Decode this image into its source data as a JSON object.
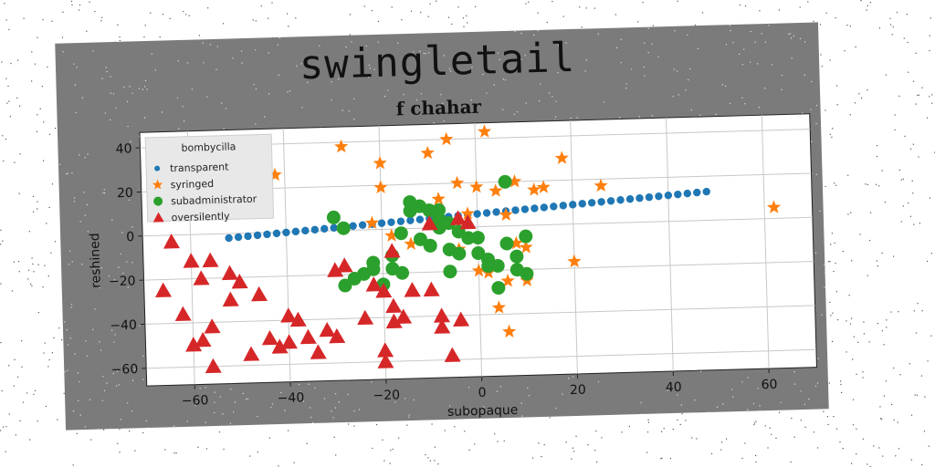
{
  "figure": {
    "title": "swingletail",
    "subtitle": "f chahar"
  },
  "chart_data": {
    "type": "scatter",
    "title": "f chahar",
    "xlabel": "subopaque",
    "ylabel": "reshined",
    "xlim": [
      -70,
      70
    ],
    "ylim": [
      -68,
      47
    ],
    "xticks": [
      -60,
      -40,
      -20,
      0,
      20,
      40,
      60
    ],
    "yticks": [
      -60,
      -40,
      -20,
      0,
      20,
      40
    ],
    "grid": true,
    "legend": {
      "title": "bombycilla",
      "placement": "top-left"
    },
    "series": [
      {
        "name": "transparent",
        "marker": "circle",
        "color": "#1f77b4",
        "x": [
          -52,
          -50,
          -48,
          -46,
          -44,
          -42,
          -40,
          -38,
          -36,
          -34,
          -32,
          -30,
          -28,
          -26,
          -24,
          -22,
          -20,
          -18,
          -16,
          -14,
          -12,
          -10,
          -8,
          -6,
          -4,
          -2,
          0,
          2,
          4,
          6,
          8,
          10,
          12,
          14,
          16,
          18,
          20,
          22,
          24,
          26,
          28,
          30,
          32,
          34,
          36,
          38,
          40,
          42,
          44,
          46,
          48
        ],
        "y": [
          -2,
          -1.7,
          -1.4,
          -1.1,
          -0.8,
          -0.5,
          -0.2,
          0.1,
          0.4,
          0.7,
          1.0,
          1.3,
          1.6,
          1.9,
          2.2,
          2.5,
          2.8,
          3.1,
          3.4,
          3.7,
          4.0,
          4.3,
          4.6,
          4.9,
          5.2,
          5.5,
          5.8,
          6.1,
          6.4,
          6.7,
          7.0,
          7.3,
          7.6,
          7.9,
          8.2,
          8.5,
          8.8,
          9.1,
          9.4,
          9.7,
          10.0,
          10.3,
          10.6,
          10.9,
          11.2,
          11.5,
          11.8,
          12.1,
          12.4,
          12.7,
          13.0
        ]
      },
      {
        "name": "syringed",
        "marker": "star",
        "color": "#ff7f0e",
        "x": [
          -42,
          -28,
          -20,
          -20,
          -12,
          -10,
          -8,
          -6,
          -4,
          -2,
          0,
          2,
          4,
          6,
          8,
          10,
          12,
          14,
          18,
          20,
          26,
          -22,
          -14,
          0,
          6,
          10,
          4,
          -18,
          -8,
          -4,
          62,
          2,
          6,
          8
        ],
        "y": [
          26,
          38,
          30,
          19,
          10,
          34,
          13,
          40,
          20,
          6,
          18,
          43,
          16,
          5,
          20,
          -10,
          16,
          17,
          30,
          -17,
          17,
          3,
          -7,
          -20,
          -25,
          -25,
          -37,
          -3,
          8,
          -10,
          5,
          -21,
          -48,
          -8
        ]
      },
      {
        "name": "subadministrator",
        "marker": "circle",
        "color": "#2ca02c",
        "x": [
          -30,
          -28,
          -26,
          -24,
          -22,
          -20,
          -18,
          -16,
          -14,
          -12,
          -10,
          -8,
          -6,
          -4,
          -2,
          0,
          2,
          4,
          6,
          8,
          10,
          -16,
          -14,
          -12,
          -10,
          -8,
          -6,
          -4,
          0,
          2,
          4,
          6,
          8,
          10,
          -28,
          -22,
          -18,
          -6,
          -8,
          -10
        ],
        "y": [
          6,
          1,
          -22,
          -20,
          -18,
          -25,
          -18,
          -20,
          8,
          10,
          8,
          4,
          2,
          -2,
          -5,
          -12,
          -15,
          -18,
          -8,
          -20,
          -22,
          -2,
          12,
          -5,
          -8,
          0,
          -10,
          -12,
          -5,
          -18,
          -28,
          20,
          -14,
          -5,
          -25,
          -15,
          -12,
          -20,
          8,
          -8
        ]
      },
      {
        "name": "oversilently",
        "marker": "triangle",
        "color": "#d62728",
        "x": [
          -64,
          -66,
          -60,
          -58,
          -56,
          -62,
          -58,
          -56,
          -52,
          -50,
          -46,
          -44,
          -42,
          -40,
          -36,
          -34,
          -30,
          -28,
          -24,
          -22,
          -20,
          -18,
          -16,
          -14,
          -10,
          -8,
          -6,
          -4,
          -2,
          -56,
          -52,
          -48,
          -40,
          -38,
          -32,
          -30,
          -20,
          -18,
          -14,
          -10,
          -20,
          -8,
          -4,
          -60,
          -18
        ],
        "y": [
          -3,
          -25,
          -12,
          -20,
          -42,
          -36,
          -48,
          -60,
          -18,
          -22,
          -28,
          -48,
          -52,
          -38,
          -48,
          -55,
          -48,
          -16,
          -40,
          -25,
          -28,
          -35,
          -40,
          -28,
          -28,
          -45,
          -58,
          4,
          2,
          -12,
          -30,
          -55,
          -50,
          -40,
          -45,
          -18,
          -55,
          -42,
          -28,
          2,
          -60,
          -40,
          -42,
          -50,
          -10
        ]
      }
    ]
  }
}
